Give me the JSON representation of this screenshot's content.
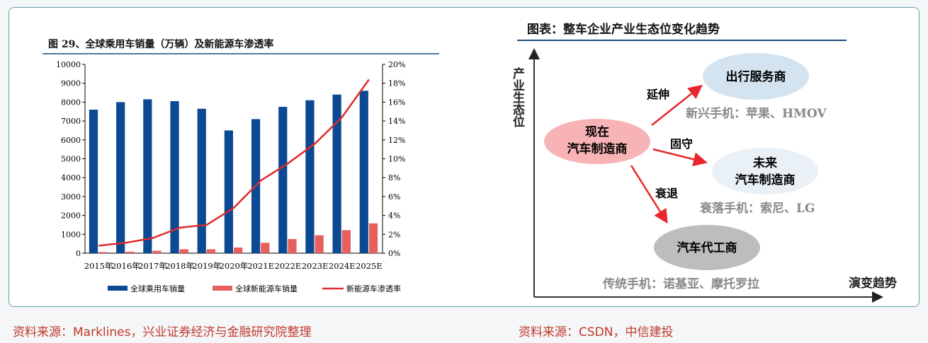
{
  "left_figure": {
    "title": "图 29、全球乘用车销量（万辆）及新能源车渗透率",
    "source": "资料来源：Marklines，兴业证券经济与金融研究院整理"
  },
  "chart_data": {
    "type": "bar+line",
    "title": "图 29、全球乘用车销量（万辆）及新能源车渗透率",
    "categories": [
      "2015年",
      "2016年",
      "2017年",
      "2018年",
      "2019年",
      "2020年",
      "2021E",
      "2022E",
      "2023E",
      "2024E",
      "2025E"
    ],
    "series": [
      {
        "name": "全球乘用车销量",
        "type": "bar",
        "axis": "left",
        "color": "#0b4a93",
        "values": [
          7600,
          8000,
          8150,
          8050,
          7650,
          6500,
          7100,
          7750,
          8100,
          8400,
          8600
        ]
      },
      {
        "name": "全球新能源车销量",
        "type": "bar",
        "axis": "left",
        "color": "#e8605e",
        "values": [
          60,
          80,
          130,
          210,
          210,
          300,
          550,
          750,
          950,
          1220,
          1580
        ]
      },
      {
        "name": "新能源车渗透率",
        "type": "line",
        "axis": "right",
        "unit": "%",
        "color": "#e02a2a",
        "values": [
          0.8,
          1.1,
          1.6,
          2.7,
          3.0,
          4.8,
          7.7,
          9.5,
          11.6,
          14.4,
          18.4
        ]
      }
    ],
    "ylim": [
      0,
      10000
    ],
    "yticks": [
      0,
      1000,
      2000,
      3000,
      4000,
      5000,
      6000,
      7000,
      8000,
      9000,
      10000
    ],
    "y2lim": [
      0,
      20
    ],
    "y2ticks": [
      "0%",
      "2%",
      "4%",
      "6%",
      "8%",
      "10%",
      "12%",
      "14%",
      "16%",
      "18%",
      "20%"
    ],
    "legend": "bottom",
    "grid": false
  },
  "right_figure": {
    "title": "图表：整车企业产业生态位变化趋势",
    "y_axis_label": "产业生态位",
    "x_axis_label": "演变趋势",
    "nodes": {
      "current": [
        "现在",
        "汽车制造商"
      ],
      "service": "出行服务商",
      "future": [
        "未来",
        "汽车制造商"
      ],
      "oem": "汽车代工商"
    },
    "arrows": {
      "extend": "延伸",
      "hold": "固守",
      "decline": "衰退"
    },
    "notes": {
      "service": "新兴手机：苹果、HMOV",
      "future": "衰落手机：索尼、LG",
      "oem": "传统手机：诺基亚、摩托罗拉"
    },
    "colors": {
      "current": "#f7b3b5",
      "service": "#d3e4f0",
      "future": "#e9f0f6",
      "oem": "#bdbdbd",
      "arrow": "#e8262c"
    },
    "source": "资料来源：CSDN，中信建投"
  }
}
